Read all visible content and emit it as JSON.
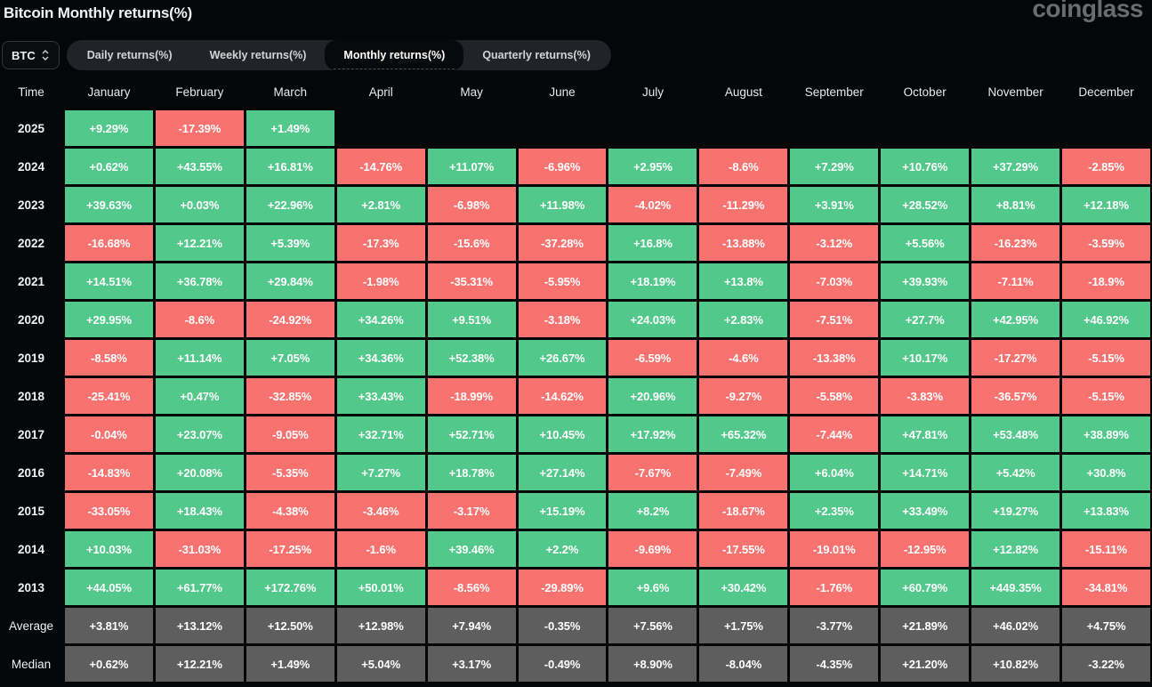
{
  "page": {
    "title": "Bitcoin Monthly returns(%)",
    "brand": "coinglass"
  },
  "controls": {
    "coin_select": {
      "value": "BTC"
    },
    "tabs": [
      {
        "label": "Daily returns(%)",
        "active": false
      },
      {
        "label": "Weekly returns(%)",
        "active": false
      },
      {
        "label": "Monthly returns(%)",
        "active": true
      },
      {
        "label": "Quarterly returns(%)",
        "active": false
      }
    ]
  },
  "colors": {
    "positive": "#52c88b",
    "negative": "#f87370",
    "summary": "#5e5e5e",
    "background": "#050608"
  },
  "chart_data": {
    "type": "heatmap",
    "title": "Bitcoin Monthly returns(%)",
    "columns": [
      "Time",
      "January",
      "February",
      "March",
      "April",
      "May",
      "June",
      "July",
      "August",
      "September",
      "October",
      "November",
      "December"
    ],
    "rows": [
      {
        "label": "2025",
        "type": "year",
        "values": [
          "+9.29%",
          "-17.39%",
          "+1.49%",
          "",
          "",
          "",
          "",
          "",
          "",
          "",
          "",
          ""
        ]
      },
      {
        "label": "2024",
        "type": "year",
        "values": [
          "+0.62%",
          "+43.55%",
          "+16.81%",
          "-14.76%",
          "+11.07%",
          "-6.96%",
          "+2.95%",
          "-8.6%",
          "+7.29%",
          "+10.76%",
          "+37.29%",
          "-2.85%"
        ]
      },
      {
        "label": "2023",
        "type": "year",
        "values": [
          "+39.63%",
          "+0.03%",
          "+22.96%",
          "+2.81%",
          "-6.98%",
          "+11.98%",
          "-4.02%",
          "-11.29%",
          "+3.91%",
          "+28.52%",
          "+8.81%",
          "+12.18%"
        ]
      },
      {
        "label": "2022",
        "type": "year",
        "values": [
          "-16.68%",
          "+12.21%",
          "+5.39%",
          "-17.3%",
          "-15.6%",
          "-37.28%",
          "+16.8%",
          "-13.88%",
          "-3.12%",
          "+5.56%",
          "-16.23%",
          "-3.59%"
        ]
      },
      {
        "label": "2021",
        "type": "year",
        "values": [
          "+14.51%",
          "+36.78%",
          "+29.84%",
          "-1.98%",
          "-35.31%",
          "-5.95%",
          "+18.19%",
          "+13.8%",
          "-7.03%",
          "+39.93%",
          "-7.11%",
          "-18.9%"
        ]
      },
      {
        "label": "2020",
        "type": "year",
        "values": [
          "+29.95%",
          "-8.6%",
          "-24.92%",
          "+34.26%",
          "+9.51%",
          "-3.18%",
          "+24.03%",
          "+2.83%",
          "-7.51%",
          "+27.7%",
          "+42.95%",
          "+46.92%"
        ]
      },
      {
        "label": "2019",
        "type": "year",
        "values": [
          "-8.58%",
          "+11.14%",
          "+7.05%",
          "+34.36%",
          "+52.38%",
          "+26.67%",
          "-6.59%",
          "-4.6%",
          "-13.38%",
          "+10.17%",
          "-17.27%",
          "-5.15%"
        ]
      },
      {
        "label": "2018",
        "type": "year",
        "values": [
          "-25.41%",
          "+0.47%",
          "-32.85%",
          "+33.43%",
          "-18.99%",
          "-14.62%",
          "+20.96%",
          "-9.27%",
          "-5.58%",
          "-3.83%",
          "-36.57%",
          "-5.15%"
        ]
      },
      {
        "label": "2017",
        "type": "year",
        "values": [
          "-0.04%",
          "+23.07%",
          "-9.05%",
          "+32.71%",
          "+52.71%",
          "+10.45%",
          "+17.92%",
          "+65.32%",
          "-7.44%",
          "+47.81%",
          "+53.48%",
          "+38.89%"
        ]
      },
      {
        "label": "2016",
        "type": "year",
        "values": [
          "-14.83%",
          "+20.08%",
          "-5.35%",
          "+7.27%",
          "+18.78%",
          "+27.14%",
          "-7.67%",
          "-7.49%",
          "+6.04%",
          "+14.71%",
          "+5.42%",
          "+30.8%"
        ]
      },
      {
        "label": "2015",
        "type": "year",
        "values": [
          "-33.05%",
          "+18.43%",
          "-4.38%",
          "-3.46%",
          "-3.17%",
          "+15.19%",
          "+8.2%",
          "-18.67%",
          "+2.35%",
          "+33.49%",
          "+19.27%",
          "+13.83%"
        ]
      },
      {
        "label": "2014",
        "type": "year",
        "values": [
          "+10.03%",
          "-31.03%",
          "-17.25%",
          "-1.6%",
          "+39.46%",
          "+2.2%",
          "-9.69%",
          "-17.55%",
          "-19.01%",
          "-12.95%",
          "+12.82%",
          "-15.11%"
        ]
      },
      {
        "label": "2013",
        "type": "year",
        "values": [
          "+44.05%",
          "+61.77%",
          "+172.76%",
          "+50.01%",
          "-8.56%",
          "-29.89%",
          "+9.6%",
          "+30.42%",
          "-1.76%",
          "+60.79%",
          "+449.35%",
          "-34.81%"
        ]
      },
      {
        "label": "Average",
        "type": "summary",
        "values": [
          "+3.81%",
          "+13.12%",
          "+12.50%",
          "+12.98%",
          "+7.94%",
          "-0.35%",
          "+7.56%",
          "+1.75%",
          "-3.77%",
          "+21.89%",
          "+46.02%",
          "+4.75%"
        ]
      },
      {
        "label": "Median",
        "type": "summary",
        "values": [
          "+0.62%",
          "+12.21%",
          "+1.49%",
          "+5.04%",
          "+3.17%",
          "-0.49%",
          "+8.90%",
          "-8.04%",
          "-4.35%",
          "+21.20%",
          "+10.82%",
          "-3.22%"
        ]
      }
    ]
  }
}
